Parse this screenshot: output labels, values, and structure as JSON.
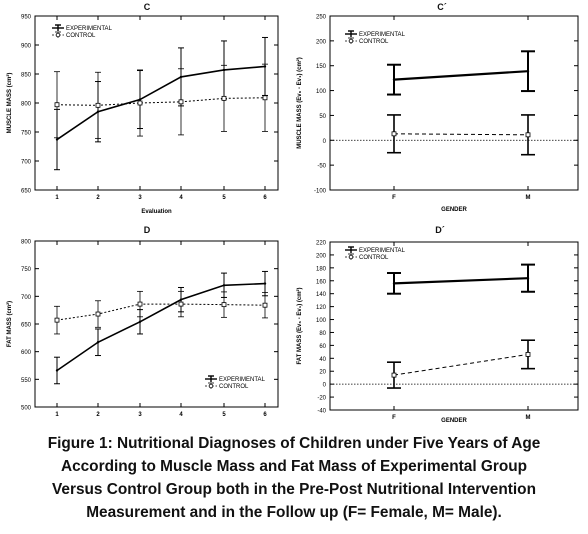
{
  "caption": {
    "lines": [
      "Figure 1: Nutritional Diagnoses of Children under Five Years of Age",
      "According to Muscle Mass and Fat Mass of Experimental Group",
      "Versus Control Group both in the Pre-Post Nutritional Intervention",
      "Measurement and in the Follow up (F= Female, M= Male)."
    ]
  },
  "chart_data": [
    {
      "id": "C",
      "type": "line",
      "title": "C",
      "xlabel": "Evaluation",
      "ylabel": "MUSCLE MASS (cm²)",
      "x": [
        "1",
        "2",
        "3",
        "4",
        "5",
        "6"
      ],
      "ylim": [
        650,
        950
      ],
      "yticks": [
        650,
        700,
        750,
        800,
        850,
        900,
        950
      ],
      "legend": {
        "position": "top-left",
        "entries": [
          "EXPERIMENTAL",
          "CONTROL"
        ]
      },
      "series": [
        {
          "name": "EXPERIMENTAL",
          "style": "solid",
          "values": [
            737,
            785,
            806,
            845,
            857,
            863
          ],
          "err": [
            52,
            52,
            50,
            50,
            50,
            50
          ]
        },
        {
          "name": "CONTROL",
          "style": "dashed",
          "values": [
            797,
            796,
            800,
            802,
            808,
            809
          ],
          "err": [
            57,
            57,
            57,
            57,
            57,
            58
          ]
        }
      ]
    },
    {
      "id": "C2",
      "type": "line",
      "title": "C´",
      "xlabel": "GENDER",
      "ylabel": "MUSCLE MASS (Ev₆ - Ev₁) (cm²)",
      "x": [
        "F",
        "M"
      ],
      "ylim": [
        -100,
        250
      ],
      "yticks": [
        -100,
        -50,
        0,
        50,
        100,
        150,
        200,
        250
      ],
      "refline": 0,
      "legend": {
        "position": "top-left",
        "entries": [
          "EXPERIMENTAL",
          "CONTROL"
        ]
      },
      "series": [
        {
          "name": "EXPERIMENTAL",
          "style": "solid",
          "values": [
            122,
            139
          ],
          "err": [
            30,
            40
          ]
        },
        {
          "name": "CONTROL",
          "style": "dashed",
          "values": [
            13,
            11
          ],
          "err": [
            38,
            40
          ]
        }
      ]
    },
    {
      "id": "D",
      "type": "line",
      "title": "D",
      "xlabel": "",
      "ylabel": "FAT MASS (cm²)",
      "x": [
        "1",
        "2",
        "3",
        "4",
        "5",
        "6"
      ],
      "ylim": [
        500,
        800
      ],
      "yticks": [
        500,
        550,
        600,
        650,
        700,
        750,
        800
      ],
      "legend": {
        "position": "bottom-right",
        "entries": [
          "EXPERIMENTAL",
          "CONTROL"
        ]
      },
      "series": [
        {
          "name": "EXPERIMENTAL",
          "style": "solid",
          "values": [
            566,
            617,
            654,
            694,
            720,
            723
          ],
          "err": [
            24,
            24,
            22,
            22,
            22,
            22
          ]
        },
        {
          "name": "CONTROL",
          "style": "dashed",
          "values": [
            657,
            668,
            686,
            686,
            685,
            684
          ],
          "err": [
            25,
            24,
            23,
            23,
            23,
            23
          ]
        }
      ]
    },
    {
      "id": "D2",
      "type": "line",
      "title": "D´",
      "xlabel": "GENDER",
      "ylabel": "FAT MASS (Ev₆ - Ev₁) (cm²)",
      "x": [
        "F",
        "M"
      ],
      "ylim": [
        -40,
        220
      ],
      "yticks": [
        -40,
        -20,
        0,
        20,
        40,
        60,
        80,
        100,
        120,
        140,
        160,
        180,
        200,
        220
      ],
      "refline": 0,
      "legend": {
        "position": "top-left",
        "entries": [
          "EXPERIMENTAL",
          "CONTROL"
        ]
      },
      "series": [
        {
          "name": "EXPERIMENTAL",
          "style": "solid",
          "values": [
            156,
            164
          ],
          "err": [
            16,
            21
          ]
        },
        {
          "name": "CONTROL",
          "style": "dashed",
          "values": [
            14,
            46
          ],
          "err": [
            20,
            22
          ]
        }
      ]
    }
  ]
}
